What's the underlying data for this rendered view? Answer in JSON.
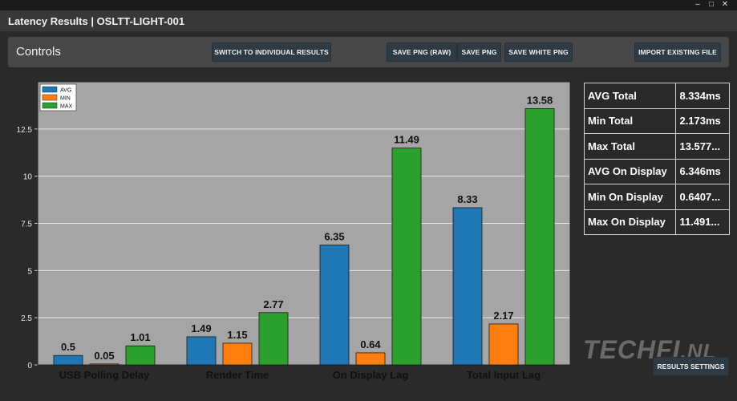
{
  "window": {
    "title": "Latency Results | OSLTT-LIGHT-001",
    "controls": {
      "minimize": "–",
      "maximize": "□",
      "close": "✕"
    }
  },
  "controls": {
    "label": "Controls",
    "switch_button": "SWITCH TO INDIVIDUAL RESULTS",
    "save_raw_button": "SAVE PNG (RAW)",
    "save_png_button": "SAVE PNG",
    "save_white_button": "SAVE WHITE PNG",
    "import_button": "IMPORT EXISTING FILE"
  },
  "chart_data": {
    "type": "bar",
    "categories": [
      "USB Polling Delay",
      "Render Time",
      "On Display Lag",
      "Total Input Lag"
    ],
    "series": [
      {
        "name": "AVG",
        "color": "#1f77b4",
        "values": [
          0.5,
          1.49,
          6.35,
          8.33
        ],
        "labels": [
          "0.5",
          "1.49",
          "6.35",
          "8.33"
        ]
      },
      {
        "name": "MIN",
        "color": "#ff7f0e",
        "values": [
          0.05,
          1.15,
          0.64,
          2.17
        ],
        "labels": [
          "0.05",
          "1.15",
          "0.64",
          "2.17"
        ]
      },
      {
        "name": "MAX",
        "color": "#2ca02c",
        "values": [
          1.01,
          2.77,
          11.49,
          13.58
        ],
        "labels": [
          "1.01",
          "2.77",
          "11.49",
          "13.58"
        ]
      }
    ],
    "yticks": [
      0,
      2.5,
      5,
      7.5,
      10,
      12.5
    ],
    "ytick_labels": [
      "0",
      "2.5",
      "5",
      "7.5",
      "10",
      "12.5"
    ],
    "ylim": [
      0,
      15
    ],
    "grid": true,
    "legend": "top-left",
    "background": "#a5a5a5",
    "title": "",
    "xlabel": "",
    "ylabel": ""
  },
  "stats": [
    {
      "label": "AVG Total",
      "value": "8.334ms"
    },
    {
      "label": "Min Total",
      "value": "2.173ms"
    },
    {
      "label": "Max Total",
      "value": "13.577..."
    },
    {
      "label": "AVG On Display",
      "value": "6.346ms"
    },
    {
      "label": "Min On Display",
      "value": "0.6407..."
    },
    {
      "label": "Max On Display",
      "value": "11.491..."
    }
  ],
  "watermark": {
    "main": "TECHFI",
    "suffix": ".NL"
  },
  "results_settings_button": "RESULTS SETTINGS"
}
